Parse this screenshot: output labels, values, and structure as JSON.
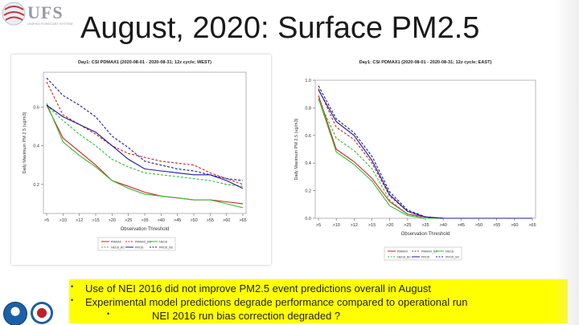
{
  "logo": {
    "text": "UFS",
    "sub": "UNIFIED FORECAST SYSTEM"
  },
  "title": "August, 2020:  Surface PM2.5",
  "bullets": [
    "Use of NEI 2016 did not improve PM2.5 event predictions overall in August",
    "Experimental model predictions degrade performance compared to operational run"
  ],
  "sub_bullet": "NEI 2016 run bias correction degraded ?",
  "colors": {
    "red": "#d42020",
    "green": "#33bb33",
    "blue": "#1a1a99",
    "highlight": "#ffff00"
  },
  "chart_data": [
    {
      "type": "line",
      "title": "Day1: CSI PDMAX1 (2020-08-01 - 2020-08-31; 12z cycle; WEST)",
      "xlabel": "Observation Threshold",
      "ylabel": "Daily Maximum PM 2.5 (ug/m3)",
      "categories": [
        ">5",
        ">10",
        ">12",
        ">15",
        ">20",
        ">25",
        ">35",
        ">40",
        ">45",
        ">50",
        ">55",
        ">60",
        ">65"
      ],
      "ylim": [
        0.05,
        0.78
      ],
      "yticks": [
        0.2,
        0.4,
        0.6
      ],
      "series": [
        {
          "name": "PMMAX",
          "color": "#d42020",
          "dash": false,
          "values": [
            0.61,
            0.44,
            0.37,
            0.3,
            0.22,
            0.19,
            0.16,
            0.14,
            0.13,
            0.12,
            0.12,
            0.11,
            0.1
          ]
        },
        {
          "name": "PMMAX_BC",
          "color": "#d42020",
          "dash": true,
          "values": [
            0.73,
            0.56,
            0.51,
            0.46,
            0.4,
            0.36,
            0.34,
            0.32,
            0.31,
            0.3,
            0.26,
            0.23,
            0.2
          ]
        },
        {
          "name": "NEI16",
          "color": "#33bb33",
          "dash": false,
          "values": [
            0.62,
            0.42,
            0.35,
            0.29,
            0.22,
            0.18,
            0.15,
            0.14,
            0.13,
            0.12,
            0.12,
            0.1,
            0.08
          ]
        },
        {
          "name": "NEI16_BC",
          "color": "#33bb33",
          "dash": true,
          "values": [
            0.61,
            0.53,
            0.46,
            0.4,
            0.33,
            0.29,
            0.26,
            0.25,
            0.24,
            0.23,
            0.22,
            0.2,
            0.19
          ]
        },
        {
          "name": "PROD",
          "color": "#1a1a99",
          "dash": false,
          "values": [
            0.61,
            0.55,
            0.51,
            0.47,
            0.4,
            0.33,
            0.28,
            0.27,
            0.26,
            0.25,
            0.25,
            0.22,
            0.18
          ]
        },
        {
          "name": "PROD_BC",
          "color": "#1a1a99",
          "dash": true,
          "values": [
            0.75,
            0.66,
            0.61,
            0.55,
            0.45,
            0.39,
            0.32,
            0.3,
            0.28,
            0.27,
            0.25,
            0.23,
            0.22
          ]
        }
      ],
      "legend": [
        "PMMAX",
        "PMMAX_BC",
        "NEI16",
        "NEI16_BC",
        "PROD",
        "PROD_BC"
      ]
    },
    {
      "type": "line",
      "title": "Day1: CSI PDMAX1 (2020-08-01 - 2020-08-31; 12z cycle; EAST)",
      "xlabel": "Observation Threshold",
      "ylabel": "Daily Maximum PM 2.5 (ug/m3)",
      "categories": [
        ">5",
        ">10",
        ">12",
        ">15",
        ">20",
        ">25",
        ">35",
        ">40",
        ">45",
        ">50",
        ">55",
        ">60",
        ">65"
      ],
      "ylim": [
        0.0,
        1.0
      ],
      "yticks": [
        0.0,
        0.2,
        0.4,
        0.6,
        0.8,
        1.0
      ],
      "series": [
        {
          "name": "PMMAX",
          "color": "#d42020",
          "dash": false,
          "values": [
            0.89,
            0.5,
            0.41,
            0.29,
            0.12,
            0.03,
            0.01,
            0.0,
            0.0,
            0.0,
            0.0,
            0.0,
            0.0
          ]
        },
        {
          "name": "PMMAX_BC",
          "color": "#d42020",
          "dash": true,
          "values": [
            0.94,
            0.66,
            0.57,
            0.4,
            0.16,
            0.05,
            0.01,
            0.0,
            0.0,
            0.0,
            0.0,
            0.0,
            0.0
          ]
        },
        {
          "name": "NEI16",
          "color": "#33bb33",
          "dash": false,
          "values": [
            0.87,
            0.48,
            0.39,
            0.27,
            0.09,
            0.02,
            0.0,
            0.0,
            0.0,
            0.0,
            0.0,
            0.0,
            0.0
          ]
        },
        {
          "name": "NEI16_BC",
          "color": "#33bb33",
          "dash": true,
          "values": [
            0.86,
            0.58,
            0.49,
            0.36,
            0.13,
            0.03,
            0.0,
            0.0,
            0.0,
            0.0,
            0.0,
            0.0,
            0.0
          ]
        },
        {
          "name": "PROD",
          "color": "#1a1a99",
          "dash": false,
          "values": [
            0.93,
            0.7,
            0.6,
            0.42,
            0.17,
            0.05,
            0.01,
            0.0,
            0.0,
            0.0,
            0.0,
            0.0,
            0.0
          ]
        },
        {
          "name": "PROD_BC",
          "color": "#1a1a99",
          "dash": true,
          "values": [
            0.96,
            0.72,
            0.62,
            0.45,
            0.19,
            0.06,
            0.01,
            0.0,
            0.0,
            0.0,
            0.0,
            0.0,
            0.0
          ]
        }
      ],
      "legend": [
        "PMMAX",
        "PMMAX_BC",
        "NEI16",
        "NEI16_BC",
        "PROD",
        "PROD_BC"
      ]
    }
  ]
}
